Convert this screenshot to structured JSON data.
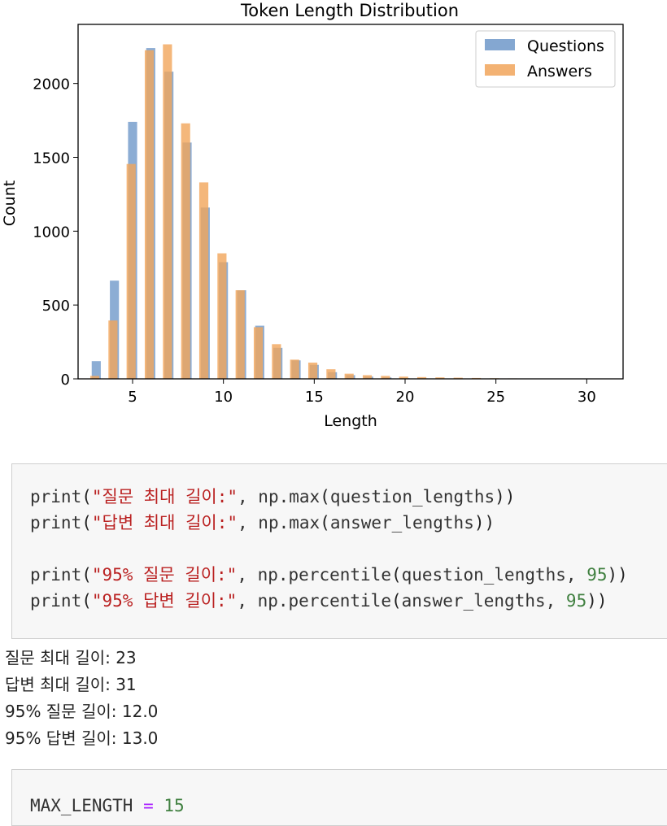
{
  "chart_data": {
    "type": "bar",
    "title": "Token Length Distribution",
    "xlabel": "Length",
    "ylabel": "Count",
    "xlim": [
      2,
      32
    ],
    "ylim": [
      0,
      2400
    ],
    "xticks": [
      5,
      10,
      15,
      20,
      25,
      30
    ],
    "yticks": [
      0,
      500,
      1000,
      1500,
      2000
    ],
    "legend": "top-right",
    "series": [
      {
        "name": "Questions",
        "color": "#6f98c9",
        "x": [
          3,
          4,
          5,
          6,
          7,
          8,
          9,
          10,
          11,
          12,
          13,
          14,
          15,
          16,
          17,
          18,
          19,
          20,
          21,
          22,
          23
        ],
        "values": [
          120,
          665,
          1740,
          2240,
          2080,
          1600,
          1160,
          790,
          600,
          360,
          210,
          125,
          95,
          45,
          25,
          15,
          10,
          5,
          3,
          2,
          1
        ]
      },
      {
        "name": "Answers",
        "color": "#f1a55a",
        "x": [
          3,
          4,
          5,
          6,
          7,
          8,
          9,
          10,
          11,
          12,
          13,
          14,
          15,
          16,
          17,
          18,
          19,
          20,
          21,
          22,
          23,
          24,
          25,
          26,
          27,
          28,
          29,
          30,
          31
        ],
        "values": [
          20,
          395,
          1455,
          2225,
          2265,
          1730,
          1330,
          850,
          600,
          350,
          235,
          130,
          110,
          65,
          35,
          25,
          20,
          15,
          12,
          10,
          8,
          6,
          4,
          3,
          2,
          2,
          1,
          1,
          1
        ]
      }
    ]
  },
  "cells": {
    "print_cell": {
      "line1": {
        "fn": "print",
        "str": "\"질문 최대 길이:\"",
        "sep": ", np.max",
        "arg": "question_lengths"
      },
      "line2": {
        "fn": "print",
        "str": "\"답변 최대 길이:\"",
        "sep": ", np.max",
        "arg": "answer_lengths"
      },
      "line3": {
        "fn": "print",
        "str": "\"95% 질문 길이:\"",
        "sep": ", np.percentile",
        "arg": "question_lengths, ",
        "num": "95"
      },
      "line4": {
        "fn": "print",
        "str": "\"95% 답변 길이:\"",
        "sep": ", np.percentile",
        "arg": "answer_lengths, ",
        "num": "95"
      }
    },
    "output_lines": [
      "질문 최대 길이: 23",
      "답변 최대 길이: 31",
      "95% 질문 길이: 12.0",
      "95% 답변 길이: 13.0"
    ],
    "max_cell": {
      "var": "MAX_LENGTH",
      "op": "=",
      "num": "15"
    }
  }
}
